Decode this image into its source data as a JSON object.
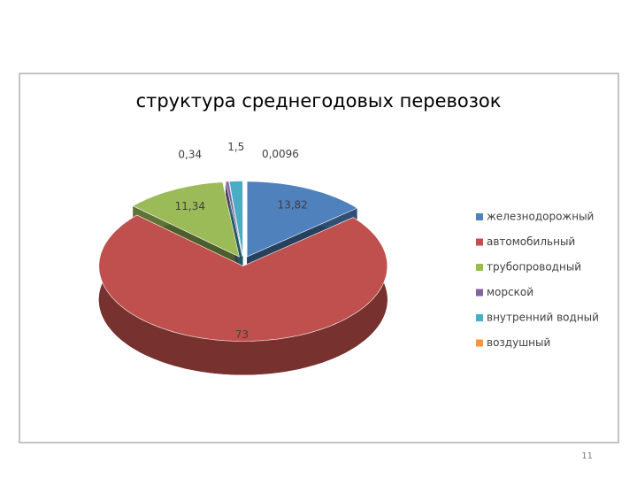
{
  "chart_data": {
    "type": "pie",
    "title": "структура среднегодовых перевозок",
    "categories": [
      "железнодорожный",
      "автомобильный",
      "трубопроводный",
      "морской",
      "внутренний водный",
      "воздушный"
    ],
    "values": [
      13.82,
      73,
      11.34,
      0.34,
      1.5,
      0.0096
    ],
    "value_labels": [
      "13,82",
      "73",
      "11,34",
      "0,34",
      "1,5",
      "0,0096"
    ],
    "colors": [
      "#4f81bd",
      "#c0504d",
      "#9bbb59",
      "#8064a2",
      "#4bacc6",
      "#f79646"
    ],
    "legend": "right"
  },
  "page_number": "11"
}
